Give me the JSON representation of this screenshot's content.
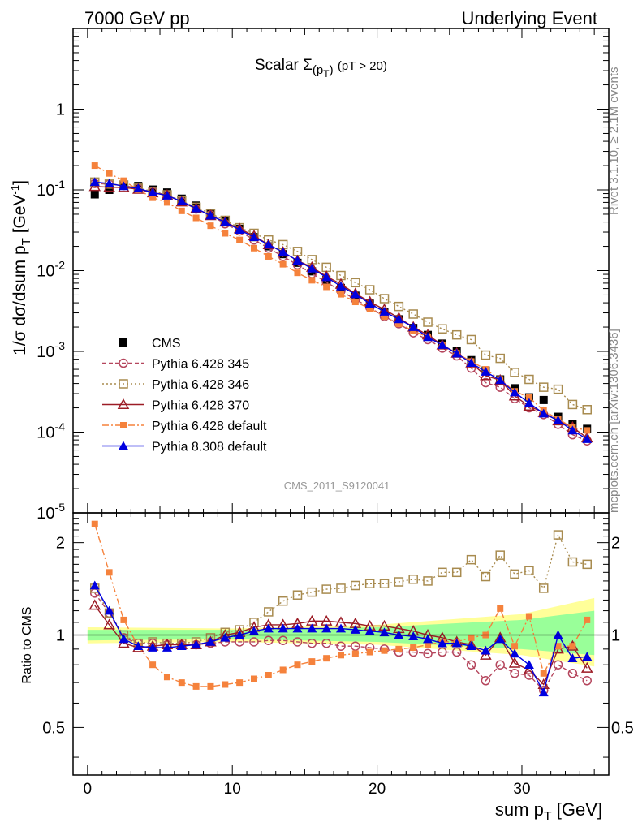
{
  "header": {
    "left": "7000 GeV pp",
    "right": "Underlying Event"
  },
  "side_text": {
    "rivet": "Rivet 3.1.10, ≥ 2.1M events",
    "source": "mcplots.cern.ch [arXiv:1306.3436]"
  },
  "watermark": "CMS_2011_S9120041",
  "colors": {
    "cms": "#000000",
    "p345": "#b5465d",
    "p346": "#a88b4f",
    "p370": "#9c1c26",
    "p6def": "#f5823c",
    "p8def": "#0000e0",
    "band_yellow": "#ffff99",
    "band_green": "#99ff99"
  },
  "chart_data": [
    {
      "type": "scatter",
      "title": "Scalar Σ(p_T) (pT > 20)",
      "title_parts": {
        "main": "Scalar Σ",
        "sub_open": "(p",
        "sub_T": "T",
        "sub_close": ")",
        "cut": "(pT > 20)"
      },
      "ylabel": "1/σ dσ/dsum p_T [GeV^-1]",
      "ylabel_parts": {
        "main": "1/σ dσ/dsum p",
        "sub": "T",
        "unit": "[GeV",
        "exp": "-1",
        "close": "]"
      },
      "yscale": "log",
      "ylim": [
        1e-05,
        10
      ],
      "xlim": [
        -1,
        36
      ],
      "y_ticks": [
        {
          "label": "1",
          "mant": "",
          "exp": ""
        },
        {
          "label": "10^-1",
          "mant": "10",
          "exp": "-1"
        },
        {
          "label": "10^-2",
          "mant": "10",
          "exp": "-2"
        },
        {
          "label": "10^-3",
          "mant": "10",
          "exp": "-3"
        },
        {
          "label": "10^-4",
          "mant": "10",
          "exp": "-4"
        },
        {
          "label": "10^-5",
          "mant": "10",
          "exp": "-5"
        }
      ],
      "legend_position": "bottom-left",
      "x": [
        0.5,
        1.5,
        2.5,
        3.5,
        4.5,
        5.5,
        6.5,
        7.5,
        8.5,
        9.5,
        10.5,
        11.5,
        12.5,
        13.5,
        14.5,
        15.5,
        16.5,
        17.5,
        18.5,
        19.5,
        20.5,
        21.5,
        22.5,
        23.5,
        24.5,
        25.5,
        26.5,
        27.5,
        28.5,
        29.5,
        30.5,
        31.5,
        32.5,
        33.5,
        34.5
      ],
      "series": [
        {
          "key": "cms",
          "name": "CMS",
          "values": [
            0.088,
            0.1,
            0.115,
            0.112,
            0.101,
            0.093,
            0.078,
            0.064,
            0.052,
            0.041,
            0.033,
            0.026,
            0.02,
            0.016,
            0.0125,
            0.0098,
            0.0077,
            0.0061,
            0.0049,
            0.0039,
            0.0031,
            0.0025,
            0.00195,
            0.0016,
            0.00125,
            0.001,
            0.00078,
            0.00058,
            0.00045,
            0.00035,
            0.00027,
            0.00025,
            0.000155,
            0.000125,
            0.00011
          ]
        },
        {
          "key": "p345",
          "name": "Pythia 6.428 345",
          "values": [
            0.12,
            0.118,
            0.113,
            0.105,
            0.095,
            0.086,
            0.072,
            0.058,
            0.049,
            0.038,
            0.031,
            0.024,
            0.019,
            0.015,
            0.0118,
            0.0092,
            0.0072,
            0.0056,
            0.0044,
            0.0035,
            0.0027,
            0.0022,
            0.0017,
            0.0014,
            0.0011,
            0.00088,
            0.00062,
            0.00041,
            0.00036,
            0.00026,
            0.0002,
            0.000165,
            0.000125,
            9.3e-05,
            7.8e-05
          ]
        },
        {
          "key": "p346",
          "name": "Pythia 6.428 346",
          "values": [
            0.125,
            0.118,
            0.115,
            0.105,
            0.096,
            0.087,
            0.073,
            0.061,
            0.051,
            0.042,
            0.034,
            0.029,
            0.024,
            0.021,
            0.0173,
            0.0137,
            0.011,
            0.0087,
            0.0071,
            0.0058,
            0.0045,
            0.0036,
            0.0029,
            0.0023,
            0.0019,
            0.0016,
            0.0014,
            0.0009,
            0.00082,
            0.00055,
            0.00045,
            0.00036,
            0.00034,
            0.00022,
            0.00019
          ]
        },
        {
          "key": "p370",
          "name": "Pythia 6.428 370",
          "values": [
            0.11,
            0.108,
            0.107,
            0.102,
            0.092,
            0.086,
            0.071,
            0.059,
            0.048,
            0.04,
            0.033,
            0.027,
            0.021,
            0.017,
            0.0133,
            0.011,
            0.0085,
            0.0068,
            0.0052,
            0.0041,
            0.0033,
            0.0026,
            0.002,
            0.0016,
            0.0012,
            0.00095,
            0.00072,
            0.0005,
            0.00044,
            0.00028,
            0.00021,
            0.000175,
            0.000138,
            0.000115,
            8.5e-05
          ]
        },
        {
          "key": "p6def",
          "name": "Pythia 6.428 default",
          "values": [
            0.2,
            0.16,
            0.13,
            0.1,
            0.08,
            0.07,
            0.055,
            0.045,
            0.036,
            0.029,
            0.024,
            0.019,
            0.015,
            0.012,
            0.0094,
            0.0076,
            0.0063,
            0.0051,
            0.0041,
            0.0034,
            0.0027,
            0.0022,
            0.0018,
            0.0015,
            0.0012,
            0.00095,
            0.00075,
            0.0006,
            0.00045,
            0.00032,
            0.00027,
            0.000185,
            0.000145,
            0.000115,
            0.000105
          ]
        },
        {
          "key": "p8def",
          "name": "Pythia 8.308 default",
          "values": [
            0.125,
            0.12,
            0.111,
            0.104,
            0.093,
            0.085,
            0.072,
            0.059,
            0.048,
            0.04,
            0.032,
            0.026,
            0.021,
            0.017,
            0.0133,
            0.0106,
            0.0083,
            0.0064,
            0.0051,
            0.0039,
            0.0031,
            0.0025,
            0.002,
            0.0015,
            0.0012,
            0.00094,
            0.00072,
            0.00056,
            0.00044,
            0.00031,
            0.00023,
            0.00017,
            0.00014,
            0.000105,
            8.2e-05
          ]
        }
      ]
    },
    {
      "type": "scatter",
      "title": "",
      "ylabel": "Ratio to CMS",
      "xlabel": "sum p_T [GeV]",
      "xlabel_parts": {
        "main": "sum p",
        "sub": "T",
        "unit": "[GeV]"
      },
      "yscale": "log",
      "ylim": [
        0.35,
        2.5
      ],
      "xlim": [
        -1,
        36
      ],
      "x_ticks": [
        "0",
        "10",
        "20",
        "30"
      ],
      "y_ticks": [
        "0.5",
        "1",
        "2"
      ],
      "reference_line": 1,
      "x": [
        0.5,
        1.5,
        2.5,
        3.5,
        4.5,
        5.5,
        6.5,
        7.5,
        8.5,
        9.5,
        10.5,
        11.5,
        12.5,
        13.5,
        14.5,
        15.5,
        16.5,
        17.5,
        18.5,
        19.5,
        20.5,
        21.5,
        22.5,
        23.5,
        24.5,
        25.5,
        26.5,
        27.5,
        28.5,
        29.5,
        30.5,
        31.5,
        32.5,
        33.5,
        34.5
      ],
      "band_yellow": {
        "x": [
          0,
          10,
          20,
          30,
          35
        ],
        "lo": [
          0.94,
          0.95,
          0.93,
          0.86,
          0.79
        ],
        "hi": [
          1.06,
          1.05,
          1.08,
          1.17,
          1.32
        ]
      },
      "band_green": {
        "x": [
          0,
          10,
          20,
          30,
          35
        ],
        "lo": [
          0.96,
          0.97,
          0.95,
          0.9,
          0.86
        ],
        "hi": [
          1.04,
          1.04,
          1.06,
          1.12,
          1.2
        ]
      },
      "series": [
        {
          "key": "p345",
          "name": "Pythia 6.428 345",
          "values": [
            1.37,
            1.18,
            0.98,
            0.94,
            0.94,
            0.93,
            0.93,
            0.93,
            0.94,
            0.95,
            0.95,
            0.95,
            0.96,
            0.96,
            0.95,
            0.94,
            0.94,
            0.92,
            0.92,
            0.91,
            0.9,
            0.88,
            0.88,
            0.87,
            0.88,
            0.88,
            0.8,
            0.71,
            0.8,
            0.75,
            0.74,
            0.66,
            0.8,
            0.75,
            0.71
          ]
        },
        {
          "key": "p346",
          "name": "Pythia 6.428 346",
          "values": [
            1.42,
            1.18,
            1.0,
            0.94,
            0.95,
            0.94,
            0.94,
            0.95,
            0.98,
            1.02,
            1.04,
            1.1,
            1.19,
            1.29,
            1.35,
            1.38,
            1.41,
            1.42,
            1.45,
            1.47,
            1.47,
            1.49,
            1.52,
            1.5,
            1.6,
            1.6,
            1.76,
            1.55,
            1.82,
            1.58,
            1.62,
            1.42,
            2.12,
            1.73,
            1.7
          ]
        },
        {
          "key": "p370",
          "name": "Pythia 6.428 370",
          "values": [
            1.25,
            1.08,
            0.94,
            0.91,
            0.92,
            0.93,
            0.93,
            0.93,
            0.95,
            1.0,
            1.02,
            1.06,
            1.08,
            1.08,
            1.09,
            1.11,
            1.11,
            1.1,
            1.09,
            1.07,
            1.07,
            1.05,
            1.03,
            1.0,
            0.98,
            0.95,
            0.93,
            0.86,
            0.98,
            0.81,
            0.77,
            0.69,
            0.9,
            0.92,
            0.78
          ]
        },
        {
          "key": "p6def",
          "name": "Pythia 6.428 default",
          "values": [
            2.3,
            1.6,
            1.12,
            0.92,
            0.8,
            0.73,
            0.7,
            0.68,
            0.68,
            0.69,
            0.7,
            0.72,
            0.74,
            0.77,
            0.8,
            0.82,
            0.84,
            0.86,
            0.87,
            0.88,
            0.89,
            0.9,
            0.91,
            0.93,
            0.95,
            0.95,
            0.98,
            1.0,
            1.22,
            0.92,
            1.15,
            0.75,
            0.92,
            0.92,
            1.12
          ]
        },
        {
          "key": "p8def",
          "name": "Pythia 8.308 default",
          "values": [
            1.45,
            1.2,
            0.97,
            0.92,
            0.91,
            0.91,
            0.92,
            0.93,
            0.95,
            0.98,
            1.0,
            1.03,
            1.05,
            1.05,
            1.05,
            1.05,
            1.05,
            1.05,
            1.04,
            1.03,
            1.02,
            1.0,
            0.99,
            0.97,
            0.94,
            0.94,
            0.92,
            0.89,
            0.97,
            0.87,
            0.8,
            0.65,
            1.0,
            0.84,
            0.85
          ]
        }
      ]
    }
  ]
}
